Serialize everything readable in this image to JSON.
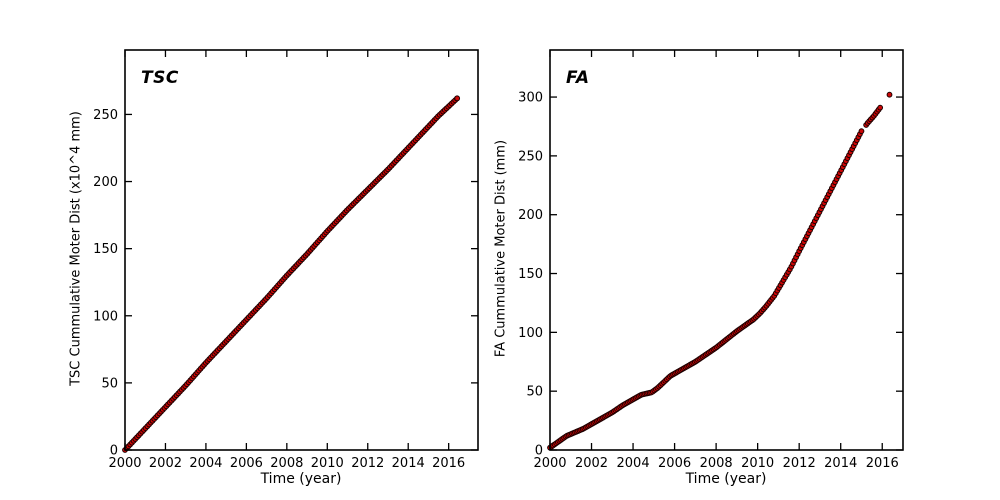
{
  "figure": {
    "background": "#ffffff",
    "text_color": "#000000"
  },
  "chart_data": [
    {
      "type": "scatter",
      "title": "TSC",
      "xlabel": "Time (year)",
      "ylabel": "TSC Cummulative Moter Dist (x10^4 mm)",
      "xlim": [
        2000,
        2017.45
      ],
      "ylim": [
        0,
        298
      ],
      "xticks": [
        2000,
        2002,
        2004,
        2006,
        2008,
        2010,
        2012,
        2014,
        2016
      ],
      "yticks": [
        0,
        50,
        100,
        150,
        200,
        250
      ],
      "grid": false,
      "legend": "none",
      "marker": {
        "shape": "circle",
        "fill": "#cc0606",
        "edge": "#1c0000",
        "radius": 2.4
      },
      "series": [
        {
          "name": "TSC cumulative motor distance",
          "sample_interval_years": 0.085,
          "gaps": [],
          "keypoints": {
            "x": [
              2000,
              2001,
              2002,
              2003,
              2004,
              2005,
              2006,
              2007,
              2008,
              2009,
              2010,
              2011,
              2012,
              2013,
              2014,
              2015,
              2015.5,
              2016,
              2016.42
            ],
            "y": [
              0,
              16,
              32,
              48,
              65,
              81,
              97,
              113,
              130,
              146,
              163,
              179,
              194,
              209,
              225,
              241,
              249,
              256,
              262
            ]
          }
        }
      ]
    },
    {
      "type": "scatter",
      "title": "FA",
      "xlabel": "Time (year)",
      "ylabel": "FA Cummulative Moter Dist (mm)",
      "xlim": [
        2000,
        2017.0
      ],
      "ylim": [
        0,
        340
      ],
      "xticks": [
        2000,
        2002,
        2004,
        2006,
        2008,
        2010,
        2012,
        2014,
        2016
      ],
      "yticks": [
        0,
        50,
        100,
        150,
        200,
        250,
        300
      ],
      "grid": false,
      "legend": "none",
      "marker": {
        "shape": "circle",
        "fill": "#cc0606",
        "edge": "#1c0000",
        "radius": 2.4
      },
      "series": [
        {
          "name": "FA cumulative motor distance",
          "sample_interval_years": 0.075,
          "gaps": [
            [
              2015.05,
              2015.22
            ],
            [
              2015.93,
              2016.3
            ]
          ],
          "keypoints": {
            "x": [
              2000,
              2000.4,
              2000.8,
              2001.2,
              2001.6,
              2002,
              2002.5,
              2003,
              2003.5,
              2004,
              2004.4,
              2004.9,
              2005.2,
              2005.5,
              2005.8,
              2006.1,
              2006.5,
              2007,
              2007.5,
              2008,
              2008.5,
              2009,
              2009.4,
              2009.8,
              2010.1,
              2010.4,
              2010.8,
              2011.2,
              2011.6,
              2012,
              2012.5,
              2013,
              2013.5,
              2014,
              2014.5,
              2015,
              2015.3,
              2015.6,
              2015.9,
              2016.1,
              2016.35
            ],
            "y": [
              2,
              7,
              12,
              15,
              18,
              22,
              27,
              32,
              38,
              43,
              47,
              49,
              53,
              58,
              63,
              66,
              70,
              75,
              81,
              87,
              94,
              101,
              106,
              111,
              116,
              122,
              131,
              143,
              155,
              169,
              186,
              203,
              220,
              237,
              254,
              271,
              278,
              284,
              291,
              295,
              302
            ]
          }
        }
      ]
    }
  ]
}
